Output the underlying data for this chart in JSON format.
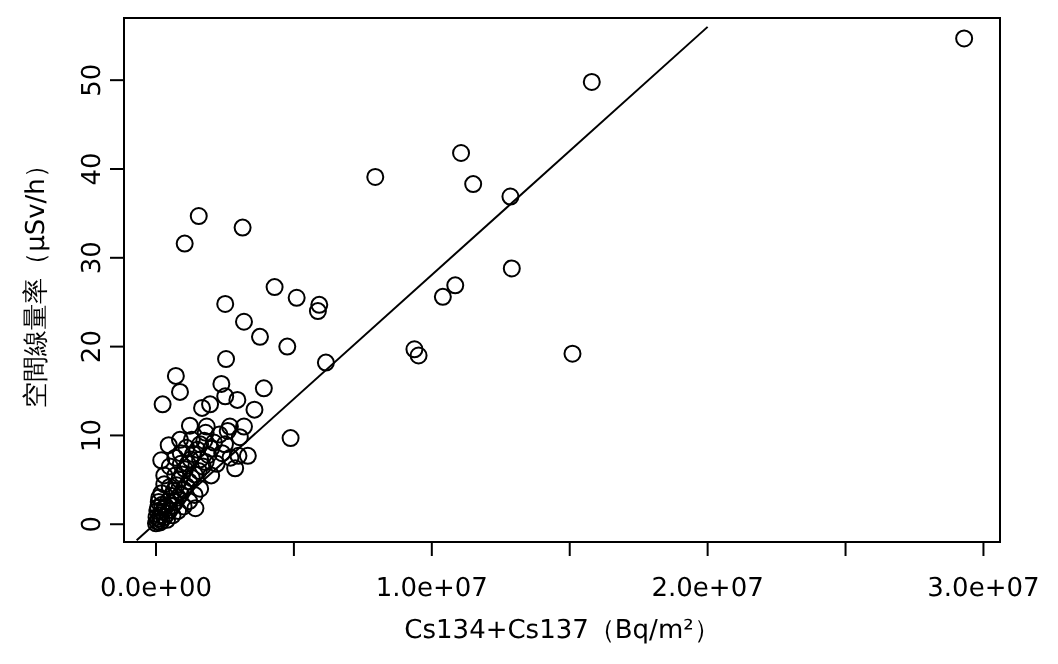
{
  "chart_data": {
    "type": "scatter",
    "xlabel": "Cs134+Cs137（Bq/m²）",
    "ylabel": "空間線量率（μSv/h）",
    "xlim": [
      -1160000,
      30600000
    ],
    "ylim": [
      -2.0,
      57.0
    ],
    "xticks": [
      {
        "value": 0,
        "label": "0.0e+00"
      },
      {
        "value": 5000000,
        "label": null
      },
      {
        "value": 10000000,
        "label": "1.0e+07"
      },
      {
        "value": 15000000,
        "label": null
      },
      {
        "value": 20000000,
        "label": "2.0e+07"
      },
      {
        "value": 25000000,
        "label": null
      },
      {
        "value": 30000000,
        "label": "3.0e+07"
      }
    ],
    "yticks": [
      0,
      10,
      20,
      30,
      40,
      50
    ],
    "series": [
      {
        "marker": "circle",
        "color": "#000000",
        "x": [
          29300000,
          15800000,
          11060000,
          7950000,
          11500000,
          12850000,
          12900000,
          1550000,
          1040000,
          3140000,
          4300000,
          5100000,
          5920000,
          5870000,
          2510000,
          10850000,
          10400000,
          3190000,
          3770000,
          4760000,
          9370000,
          9520000,
          15100000,
          6160000,
          2540000,
          720000,
          870000,
          240000,
          2370000,
          2510000,
          3910000,
          2950000,
          1670000,
          1960000,
          3570000,
          4880000,
          2870000,
          3330000,
          2990000,
          3040000,
          3190000,
          2680000,
          1230000,
          1840000,
          870000,
          460000,
          190000,
          1430000,
          50000,
          100000,
          150000,
          200000,
          250000,
          300000,
          350000,
          400000,
          450000,
          500000,
          550000,
          600000,
          650000,
          700000,
          750000,
          800000,
          850000,
          900000,
          950000,
          1000000,
          1050000,
          1100000,
          1150000,
          1200000,
          1250000,
          1300000,
          1350000,
          1400000,
          1500000,
          1550000,
          1600000,
          1700000,
          1750000,
          1800000,
          1900000,
          2000000,
          2100000,
          2200000,
          2300000,
          2400000,
          2500000,
          2600000,
          2700000,
          100000,
          200000,
          300000,
          50000,
          150000,
          400000,
          600000,
          800000,
          1000000,
          1200000,
          1400000,
          1600000,
          300000,
          500000,
          700000,
          900000,
          1100000,
          0,
          20000,
          80000,
          120000,
          220000,
          500000,
          700000,
          1300000,
          1800000,
          2000000,
          900000,
          1600000
        ],
        "values": [
          54.7,
          49.8,
          41.8,
          39.1,
          38.3,
          36.9,
          28.8,
          34.7,
          31.6,
          33.4,
          26.7,
          25.5,
          24.7,
          24.0,
          24.8,
          26.9,
          25.6,
          22.8,
          21.1,
          20.0,
          19.7,
          19.0,
          19.2,
          18.2,
          18.6,
          16.7,
          14.9,
          13.5,
          15.8,
          14.4,
          15.3,
          14.0,
          13.1,
          13.5,
          12.9,
          9.7,
          6.3,
          7.7,
          7.7,
          9.8,
          11.0,
          11.0,
          11.1,
          11.0,
          9.5,
          8.9,
          7.2,
          1.8,
          0.3,
          0.6,
          1.0,
          0.4,
          1.4,
          0.8,
          2.0,
          1.2,
          2.6,
          1.6,
          3.2,
          2.1,
          3.8,
          2.5,
          4.4,
          3.0,
          5.0,
          3.4,
          5.6,
          3.9,
          6.2,
          4.3,
          6.8,
          4.8,
          7.3,
          5.2,
          7.9,
          5.6,
          8.4,
          6.0,
          9.0,
          6.5,
          9.4,
          7.0,
          7.8,
          8.5,
          9.2,
          6.8,
          10.1,
          8.0,
          9.0,
          10.5,
          7.5,
          2.5,
          3.5,
          4.5,
          1.5,
          0.2,
          0.5,
          1.0,
          1.5,
          2.0,
          2.6,
          3.3,
          4.0,
          5.5,
          6.5,
          7.5,
          8.0,
          8.6,
          0.1,
          0.8,
          1.9,
          3.0,
          2.2,
          4.2,
          5.5,
          9.5,
          10.3,
          5.5,
          6.8,
          7.3
        ]
      },
      {
        "type": "line",
        "color": "#000000",
        "x": [
          -700000,
          20000000
        ],
        "values": [
          -1.8,
          56.0
        ]
      }
    ]
  }
}
